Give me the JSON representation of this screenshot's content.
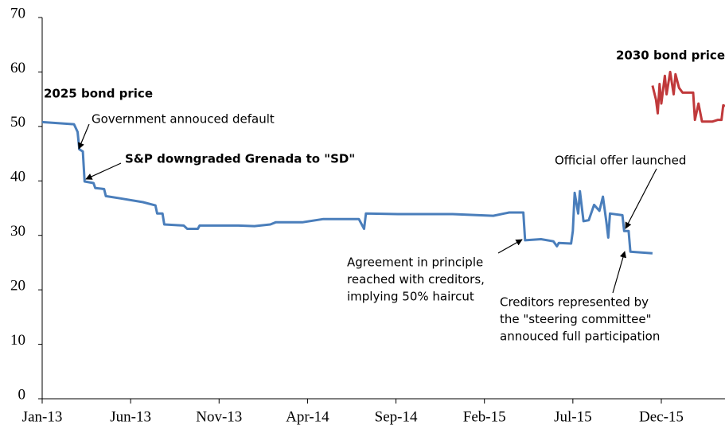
{
  "chart_data": {
    "type": "line",
    "xlim": [
      0,
      38.6
    ],
    "xticks": [
      {
        "value": 0,
        "label": "Jan-13"
      },
      {
        "value": 5,
        "label": "Jun-13"
      },
      {
        "value": 10,
        "label": "Nov-13"
      },
      {
        "value": 15,
        "label": "Apr-14"
      },
      {
        "value": 20,
        "label": "Sep-14"
      },
      {
        "value": 25,
        "label": "Feb-15"
      },
      {
        "value": 30,
        "label": "Jul-15"
      },
      {
        "value": 35,
        "label": "Dec-15"
      }
    ],
    "ylim": [
      0,
      70
    ],
    "yticks": [
      0,
      10,
      20,
      30,
      40,
      50,
      60,
      70
    ],
    "grid": false,
    "series": [
      {
        "name": "2025 bond price",
        "color": "#4a7ebb",
        "x": [
          0,
          1.8,
          2.0,
          2.1,
          2.3,
          2.4,
          2.9,
          3.0,
          3.5,
          3.6,
          4.4,
          5.7,
          6.4,
          6.5,
          6.8,
          6.9,
          8.0,
          8.2,
          8.8,
          8.9,
          11.1,
          12.0,
          12.9,
          13.2,
          14.7,
          15.9,
          17.9,
          18.2,
          18.3,
          20.1,
          23.2,
          25.5,
          26.4,
          27.2,
          27.3,
          28.2,
          28.9,
          29.1,
          29.2,
          29.9,
          30.0,
          30.1,
          30.3,
          30.4,
          30.6,
          30.9,
          31.2,
          31.5,
          31.7,
          31.9,
          32.0,
          32.1,
          32.8,
          32.9,
          33.15,
          33.25,
          34.5
        ],
        "values": [
          50.8,
          50.4,
          49,
          45.8,
          45.4,
          39.9,
          39.6,
          38.7,
          38.5,
          37.2,
          36.8,
          36.1,
          35.5,
          34.0,
          34.0,
          32.0,
          31.8,
          31.2,
          31.2,
          31.8,
          31.8,
          31.7,
          32.0,
          32.4,
          32.4,
          33.0,
          33.0,
          31.2,
          34.0,
          33.9,
          33.9,
          33.6,
          34.2,
          34.2,
          29.1,
          29.3,
          28.9,
          28.0,
          28.6,
          28.5,
          30.8,
          37.8,
          34.0,
          38.1,
          32.6,
          32.8,
          35.6,
          34.5,
          37.1,
          32.3,
          29.6,
          34.0,
          33.7,
          30.8,
          30.8,
          27.0,
          26.7
        ]
      },
      {
        "name": "2030 bond price",
        "color": "#c0393b",
        "x": [
          34.5,
          34.7,
          34.8,
          34.9,
          35.0,
          35.2,
          35.3,
          35.5,
          35.7,
          35.8,
          36.0,
          36.2,
          36.8,
          36.9,
          37.1,
          37.3,
          37.9,
          38.2,
          38.4,
          38.5,
          38.6
        ],
        "values": [
          57.5,
          54.9,
          52.4,
          57.8,
          54.2,
          59.3,
          55.9,
          60.0,
          55.9,
          59.6,
          57.1,
          56.2,
          56.2,
          51.2,
          54.2,
          50.9,
          50.9,
          51.2,
          51.2,
          53.9,
          53.7
        ]
      }
    ],
    "annotations": [
      [
        "Government annouced default"
      ],
      [
        "S&P downgraded Grenada to \"SD\""
      ],
      [
        "Agreement in principle",
        "reached with creditors,",
        "implying 50% haircut"
      ],
      [
        "Official offer launched"
      ],
      [
        "Creditors represented by",
        "the \"steering committee\"",
        "annouced full participation"
      ]
    ]
  }
}
